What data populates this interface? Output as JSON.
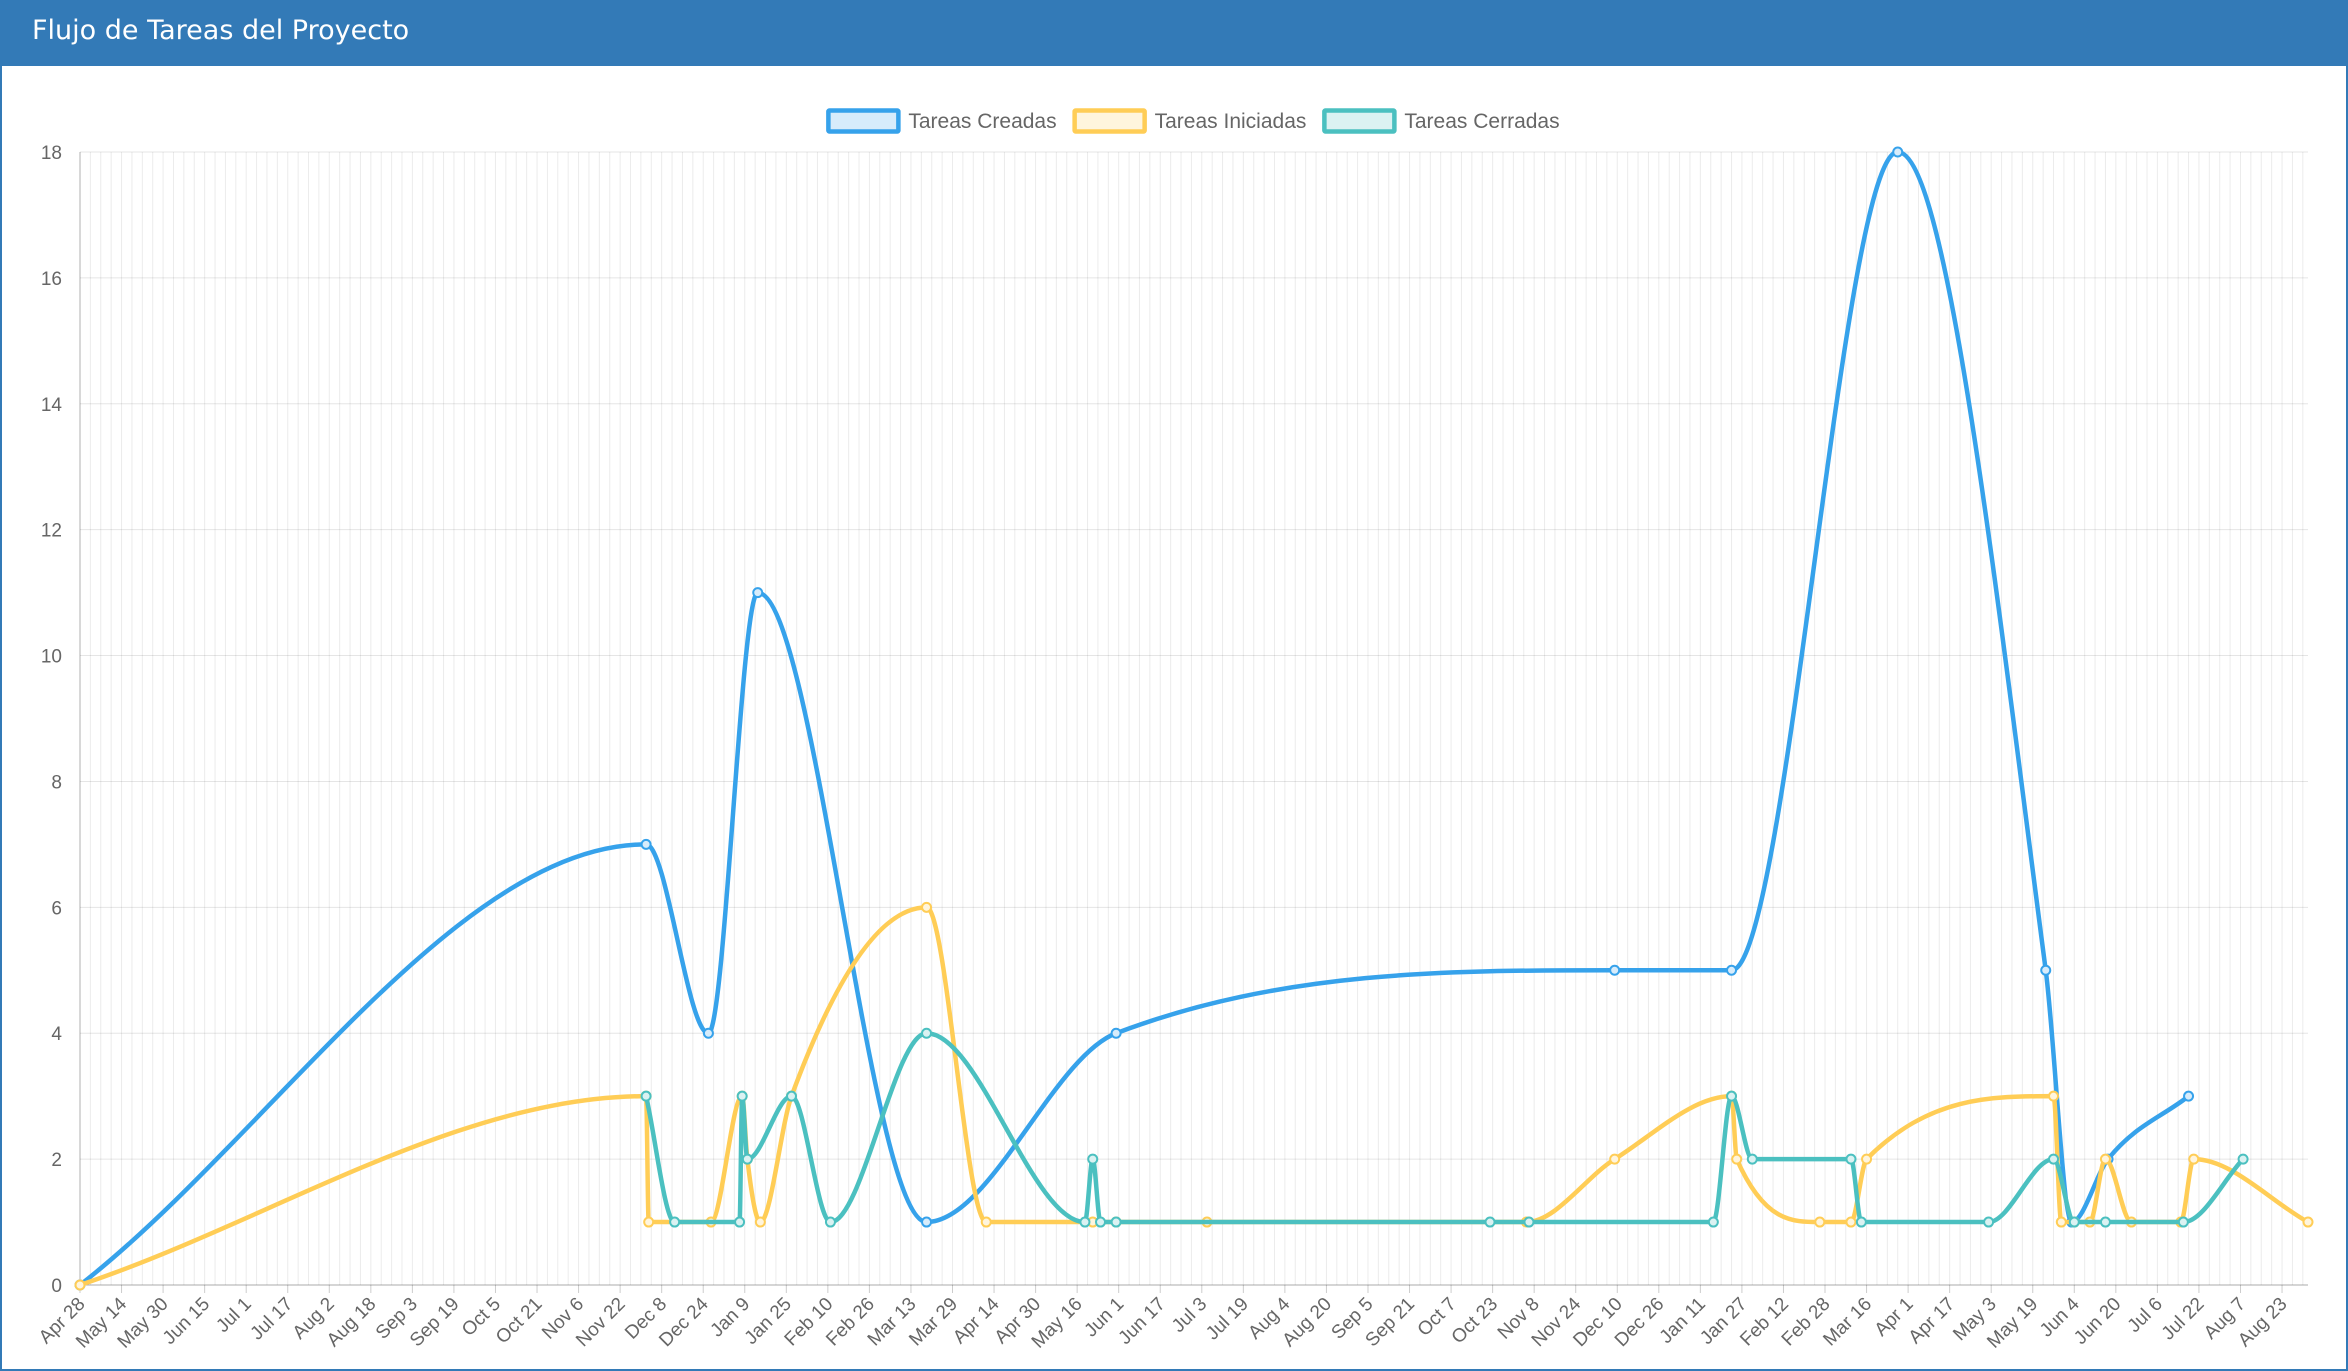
{
  "panel": {
    "title": "Flujo de Tareas del Proyecto"
  },
  "chart_data": {
    "type": "line",
    "title": "",
    "xlabel": "",
    "ylabel": "",
    "ylim": [
      0,
      18
    ],
    "yticks": [
      0,
      2,
      4,
      6,
      8,
      10,
      12,
      14,
      16,
      18
    ],
    "grid": true,
    "legend_position": "top",
    "x_axis": "date",
    "xlim": [
      "2014-04-28",
      "2016-09-02"
    ],
    "xtick_labels": [
      "Apr 28",
      "May 14",
      "May 30",
      "Jun 15",
      "Jul 1",
      "Jul 17",
      "Aug 2",
      "Aug 18",
      "Sep 3",
      "Sep 19",
      "Oct 5",
      "Oct 21",
      "Nov 6",
      "Nov 22",
      "Dec 8",
      "Dec 24",
      "Jan 9",
      "Jan 25",
      "Feb 10",
      "Feb 26",
      "Mar 13",
      "Mar 29",
      "Apr 14",
      "Apr 30",
      "May 16",
      "Jun 1",
      "Jun 17",
      "Jul 3",
      "Jul 19",
      "Aug 4",
      "Aug 20",
      "Sep 5",
      "Sep 21",
      "Oct 7",
      "Oct 23",
      "Nov 8",
      "Nov 24",
      "Dec 10",
      "Dec 26",
      "Jan 11",
      "Jan 27",
      "Feb 12",
      "Feb 28",
      "Mar 16",
      "Apr 1",
      "Apr 17",
      "May 3",
      "May 19",
      "Jun 4",
      "Jun 20",
      "Jul 6",
      "Jul 22",
      "Aug 7",
      "Aug 23"
    ],
    "series": [
      {
        "name": "Tareas Creadas",
        "color": "#36a2eb",
        "fill": "#d7ecfb",
        "points": [
          [
            "2014-04-28",
            0
          ],
          [
            "2014-12-02",
            7
          ],
          [
            "2014-12-26",
            4
          ],
          [
            "2015-01-14",
            11
          ],
          [
            "2015-03-20",
            1
          ],
          [
            "2015-06-01",
            4
          ],
          [
            "2015-12-10",
            5
          ],
          [
            "2016-01-24",
            5
          ],
          [
            "2016-03-28",
            18
          ],
          [
            "2016-05-24",
            5
          ],
          [
            "2016-06-03",
            1
          ],
          [
            "2016-06-17",
            2
          ],
          [
            "2016-07-18",
            3
          ]
        ]
      },
      {
        "name": "Tareas Iniciadas",
        "color": "#ffcd56",
        "fill": "#fff5dd",
        "points": [
          [
            "2014-04-28",
            0
          ],
          [
            "2014-12-02",
            3
          ],
          [
            "2014-12-03",
            1
          ],
          [
            "2014-12-27",
            1
          ],
          [
            "2015-01-08",
            3
          ],
          [
            "2015-01-10",
            2
          ],
          [
            "2015-01-15",
            1
          ],
          [
            "2015-01-27",
            3
          ],
          [
            "2015-03-20",
            6
          ],
          [
            "2015-04-12",
            1
          ],
          [
            "2015-05-23",
            1
          ],
          [
            "2015-06-01",
            1
          ],
          [
            "2015-07-06",
            1
          ],
          [
            "2015-11-06",
            1
          ],
          [
            "2015-12-10",
            2
          ],
          [
            "2016-01-24",
            3
          ],
          [
            "2016-01-26",
            2
          ],
          [
            "2016-02-27",
            1
          ],
          [
            "2016-03-10",
            1
          ],
          [
            "2016-03-16",
            2
          ],
          [
            "2016-05-27",
            3
          ],
          [
            "2016-05-30",
            1
          ],
          [
            "2016-06-04",
            1
          ],
          [
            "2016-06-10",
            1
          ],
          [
            "2016-06-16",
            2
          ],
          [
            "2016-06-26",
            1
          ],
          [
            "2016-07-15",
            1
          ],
          [
            "2016-07-20",
            2
          ],
          [
            "2016-09-02",
            1
          ]
        ]
      },
      {
        "name": "Tareas Cerradas",
        "color": "#4bc0c0",
        "fill": "#dbf2f2",
        "points": [
          [
            "2014-12-02",
            3
          ],
          [
            "2014-12-13",
            1
          ],
          [
            "2015-01-07",
            1
          ],
          [
            "2015-01-08",
            3
          ],
          [
            "2015-01-10",
            2
          ],
          [
            "2015-01-27",
            3
          ],
          [
            "2015-02-11",
            1
          ],
          [
            "2015-03-20",
            4
          ],
          [
            "2015-05-20",
            1
          ],
          [
            "2015-05-23",
            2
          ],
          [
            "2015-05-26",
            1
          ],
          [
            "2015-06-01",
            1
          ],
          [
            "2015-10-23",
            1
          ],
          [
            "2015-11-07",
            1
          ],
          [
            "2016-01-17",
            1
          ],
          [
            "2016-01-24",
            3
          ],
          [
            "2016-02-01",
            2
          ],
          [
            "2016-03-10",
            2
          ],
          [
            "2016-03-14",
            1
          ],
          [
            "2016-05-02",
            1
          ],
          [
            "2016-05-27",
            2
          ],
          [
            "2016-06-04",
            1
          ],
          [
            "2016-06-16",
            1
          ],
          [
            "2016-07-16",
            1
          ],
          [
            "2016-08-08",
            2
          ]
        ]
      }
    ]
  }
}
